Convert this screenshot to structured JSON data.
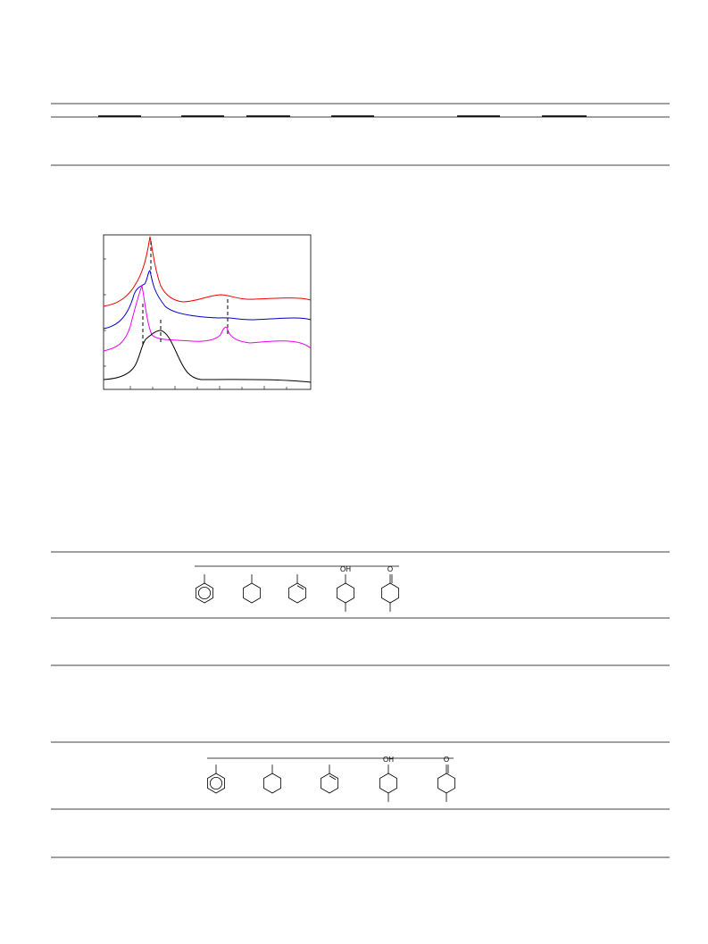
{
  "table2": {
    "substituent_labels": [
      "OH",
      "O"
    ]
  },
  "table3": {
    "substituent_labels": [
      "OH",
      "O"
    ]
  }
}
